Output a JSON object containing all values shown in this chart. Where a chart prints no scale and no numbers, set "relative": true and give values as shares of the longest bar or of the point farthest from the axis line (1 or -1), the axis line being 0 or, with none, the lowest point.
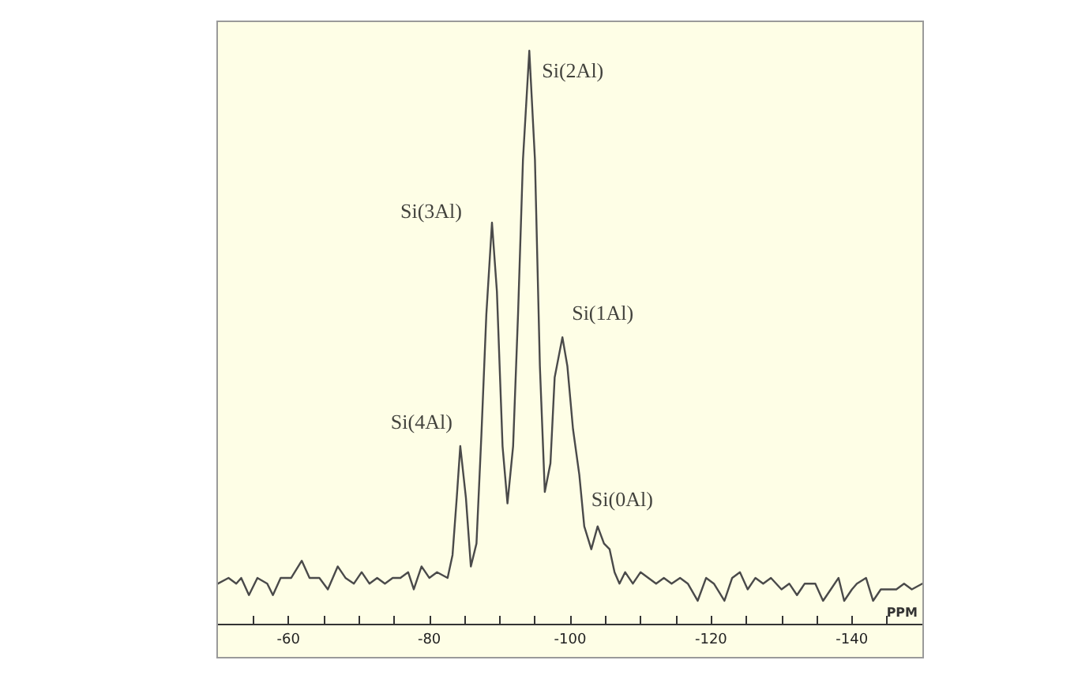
{
  "chart_data": {
    "type": "line",
    "relative": true,
    "xlabel": "PPM",
    "xlim": [
      -50,
      -150
    ],
    "xticks": [
      {
        "value": -55,
        "label": null
      },
      -60,
      {
        "value": -65,
        "label": null
      },
      {
        "value": -70,
        "label": null
      },
      {
        "value": -75,
        "label": null
      },
      -80,
      {
        "value": -85,
        "label": null
      },
      {
        "value": -90,
        "label": null
      },
      {
        "value": -95,
        "label": null
      },
      -100,
      {
        "value": -105,
        "label": null
      },
      {
        "value": -110,
        "label": null
      },
      {
        "value": -115,
        "label": null
      },
      -120,
      {
        "value": -125,
        "label": null
      },
      {
        "value": -130,
        "label": null
      },
      {
        "value": -135,
        "label": null
      },
      -140,
      {
        "value": -145,
        "label": null
      }
    ],
    "grid": false,
    "marker": "none",
    "line_style": "solid",
    "series": [
      {
        "color": "#4a4a4a",
        "x": [
          -50,
          -51.5,
          -52.6,
          -53.3,
          -54.4,
          -55.6,
          -57.0,
          -57.8,
          -58.9,
          -60.4,
          -61.9,
          -63.0,
          -64.4,
          -65.6,
          -67.0,
          -68.1,
          -69.3,
          -70.4,
          -71.5,
          -72.6,
          -73.7,
          -74.8,
          -75.9,
          -77.0,
          -77.8,
          -78.9,
          -80.0,
          -81.1,
          -82.6,
          -83.3,
          -83.9,
          -84.4,
          -85.2,
          -85.9,
          -86.7,
          -87.4,
          -88.1,
          -88.9,
          -89.6,
          -90.4,
          -91.1,
          -91.9,
          -92.6,
          -93.3,
          -94.2,
          -95.0,
          -95.7,
          -96.4,
          -97.2,
          -97.8,
          -98.9,
          -99.6,
          -100.4,
          -101.3,
          -102.0,
          -103.0,
          -103.9,
          -104.8,
          -105.6,
          -106.3,
          -107.0,
          -107.8,
          -108.9,
          -110.0,
          -111.1,
          -112.2,
          -113.3,
          -114.4,
          -115.6,
          -116.7,
          -118.1,
          -119.3,
          -120.4,
          -121.9,
          -123.0,
          -124.1,
          -125.2,
          -126.3,
          -127.4,
          -128.5,
          -130.0,
          -131.1,
          -132.2,
          -133.3,
          -134.8,
          -135.9,
          -137.0,
          -138.1,
          -138.9,
          -140.0,
          -140.7,
          -142.0,
          -143.0,
          -144.1,
          -145.2,
          -146.3,
          -147.4,
          -148.5,
          -150
        ],
        "values": [
          0.07,
          0.08,
          0.07,
          0.08,
          0.05,
          0.08,
          0.07,
          0.05,
          0.08,
          0.08,
          0.11,
          0.08,
          0.08,
          0.06,
          0.1,
          0.08,
          0.07,
          0.09,
          0.07,
          0.08,
          0.07,
          0.08,
          0.08,
          0.09,
          0.06,
          0.1,
          0.08,
          0.09,
          0.08,
          0.12,
          0.22,
          0.31,
          0.22,
          0.1,
          0.14,
          0.33,
          0.54,
          0.7,
          0.58,
          0.31,
          0.21,
          0.31,
          0.54,
          0.81,
          1,
          0.81,
          0.45,
          0.23,
          0.28,
          0.43,
          0.5,
          0.45,
          0.34,
          0.26,
          0.17,
          0.13,
          0.17,
          0.14,
          0.13,
          0.09,
          0.07,
          0.09,
          0.07,
          0.09,
          0.08,
          0.07,
          0.08,
          0.07,
          0.08,
          0.07,
          0.04,
          0.08,
          0.07,
          0.04,
          0.08,
          0.09,
          0.06,
          0.08,
          0.07,
          0.08,
          0.06,
          0.07,
          0.05,
          0.07,
          0.07,
          0.04,
          0.06,
          0.08,
          0.04,
          0.06,
          0.07,
          0.08,
          0.04,
          0.06,
          0.06,
          0.06,
          0.07,
          0.06,
          0.07
        ]
      }
    ],
    "annotations": [
      {
        "text": "Si(2Al)",
        "x": -94.2,
        "y": 1
      },
      {
        "text": "Si(3Al)",
        "x": -88.9,
        "y": 0.7
      },
      {
        "text": "Si(1Al)",
        "x": -98.9,
        "y": 0.5
      },
      {
        "text": "Si(4Al)",
        "x": -84.4,
        "y": 0.31
      },
      {
        "text": "Si(0Al)",
        "x": -103.9,
        "y": 0.17
      }
    ]
  }
}
